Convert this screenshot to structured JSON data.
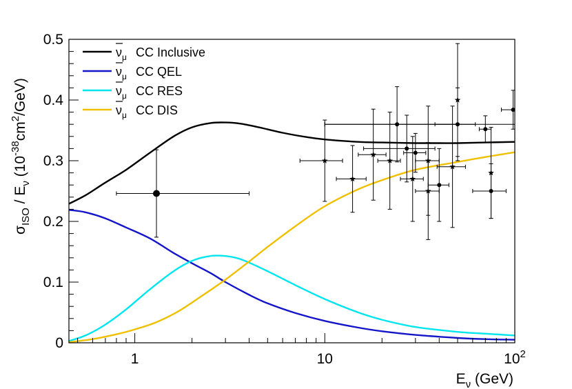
{
  "chart_data": {
    "type": "line",
    "title": "",
    "xlabel": "E_ν (GeV)",
    "ylabel": "σ_ISO / E_ν (10^-38 cm²/GeV)",
    "xscale": "log",
    "xlim": [
      0.45,
      100
    ],
    "ylim": [
      0,
      0.5
    ],
    "legend_position": "top-left",
    "x_ticks": [
      {
        "value": 1,
        "label": "1"
      },
      {
        "value": 10,
        "label": "10"
      },
      {
        "value": 100,
        "label": "10",
        "sup": "2"
      }
    ],
    "y_ticks": [
      {
        "value": 0,
        "label": "0"
      },
      {
        "value": 0.1,
        "label": "0.1"
      },
      {
        "value": 0.2,
        "label": "0.2"
      },
      {
        "value": 0.3,
        "label": "0.3"
      },
      {
        "value": 0.4,
        "label": "0.4"
      },
      {
        "value": 0.5,
        "label": "0.5"
      }
    ],
    "axis_title_parts": {
      "y_sigma": "σ",
      "y_iso": "ISO",
      "y_mid": " / E",
      "y_nu": "ν",
      "y_units_a": " (10",
      "y_exp": "-38",
      "y_units_b": "cm",
      "y_sq": "2",
      "y_units_c": "/GeV)",
      "x_e": "E",
      "x_nu": "ν",
      "x_units": " (GeV)"
    },
    "series": [
      {
        "name": "CC Inclusive",
        "legend_label": "CC Inclusive",
        "color": "#000000",
        "x": [
          0.45,
          0.55,
          0.7,
          0.9,
          1.2,
          1.6,
          2.0,
          2.5,
          3.0,
          3.6,
          4.5,
          6,
          8,
          10,
          15,
          20,
          30,
          40,
          50,
          70,
          100
        ],
        "y": [
          0.229,
          0.243,
          0.264,
          0.285,
          0.313,
          0.34,
          0.355,
          0.362,
          0.363,
          0.361,
          0.355,
          0.346,
          0.339,
          0.335,
          0.331,
          0.33,
          0.329,
          0.329,
          0.329,
          0.33,
          0.331
        ]
      },
      {
        "name": "CC QEL",
        "legend_label": "CC QEL",
        "color": "#1414c8",
        "x": [
          0.45,
          0.55,
          0.7,
          0.9,
          1.2,
          1.6,
          2.0,
          2.5,
          3.0,
          4.0,
          5.0,
          7,
          10,
          15,
          20,
          30,
          50,
          70,
          100
        ],
        "y": [
          0.219,
          0.215,
          0.205,
          0.19,
          0.172,
          0.148,
          0.131,
          0.115,
          0.1,
          0.079,
          0.065,
          0.049,
          0.036,
          0.025,
          0.019,
          0.013,
          0.008,
          0.006,
          0.005
        ]
      },
      {
        "name": "CC RES",
        "legend_label": "CC RES",
        "color": "#00e5ee",
        "x": [
          0.45,
          0.55,
          0.7,
          0.9,
          1.2,
          1.6,
          2.0,
          2.5,
          3.0,
          3.5,
          4.0,
          5,
          7,
          10,
          15,
          20,
          30,
          50,
          70,
          100
        ],
        "y": [
          0.003,
          0.012,
          0.03,
          0.055,
          0.088,
          0.118,
          0.135,
          0.143,
          0.143,
          0.139,
          0.132,
          0.118,
          0.095,
          0.072,
          0.05,
          0.038,
          0.026,
          0.018,
          0.015,
          0.012
        ]
      },
      {
        "name": "CC DIS",
        "legend_label": "CC DIS",
        "color": "#f0c000",
        "x": [
          0.45,
          0.6,
          0.8,
          1.0,
          1.3,
          1.7,
          2.2,
          3.0,
          4.0,
          5,
          7,
          10,
          15,
          20,
          30,
          50,
          70,
          100
        ],
        "y": [
          0.001,
          0.006,
          0.014,
          0.022,
          0.034,
          0.052,
          0.075,
          0.104,
          0.134,
          0.158,
          0.192,
          0.225,
          0.253,
          0.268,
          0.285,
          0.298,
          0.306,
          0.314
        ]
      }
    ],
    "data_points": [
      {
        "x": 1.3,
        "y": 0.246,
        "yerr": [
          0.072,
          0.072
        ],
        "xerr": [
          0.5,
          2.7
        ],
        "marker": "circle"
      },
      {
        "x": 10,
        "y": 0.3,
        "yerr": [
          0.067,
          0.067
        ],
        "xerr": [
          2.6,
          2.4
        ],
        "marker": "star"
      },
      {
        "x": 14,
        "y": 0.27,
        "yerr": [
          0.055,
          0.055
        ],
        "xerr": [
          2.5,
          2.5
        ],
        "marker": "star"
      },
      {
        "x": 18,
        "y": 0.31,
        "yerr": [
          0.075,
          0.075
        ],
        "xerr": [
          3,
          3
        ],
        "marker": "star"
      },
      {
        "x": 22,
        "y": 0.3,
        "yerr": [
          0.08,
          0.08
        ],
        "xerr": [
          3,
          3
        ],
        "marker": "star"
      },
      {
        "x": 24,
        "y": 0.36,
        "yerr": [
          0.062,
          0.062
        ],
        "xerr": [
          14,
          26
        ],
        "marker": "circle"
      },
      {
        "x": 27,
        "y": 0.32,
        "yerr": [
          0.055,
          0.055
        ],
        "xerr": [
          11,
          11
        ],
        "marker": "circle"
      },
      {
        "x": 29,
        "y": 0.27,
        "yerr": [
          0.07,
          0.07
        ],
        "xerr": [
          4,
          4
        ],
        "marker": "star"
      },
      {
        "x": 30,
        "y": 0.313,
        "yerr": [
          0.032,
          0.032
        ],
        "xerr": [
          4,
          4
        ],
        "marker": "circle"
      },
      {
        "x": 35,
        "y": 0.3,
        "yerr": [
          0.09,
          0.09
        ],
        "xerr": [
          5,
          5
        ],
        "marker": "star"
      },
      {
        "x": 35,
        "y": 0.25,
        "yerr": [
          0.08,
          0.08
        ],
        "xerr": [
          5,
          5
        ],
        "marker": "star"
      },
      {
        "x": 40,
        "y": 0.26,
        "yerr": [
          0.06,
          0.06
        ],
        "xerr": [
          5,
          5
        ],
        "marker": "circle"
      },
      {
        "x": 47,
        "y": 0.29,
        "yerr": [
          0.1,
          0.1
        ],
        "xerr": [
          8,
          8
        ],
        "marker": "star"
      },
      {
        "x": 50,
        "y": 0.36,
        "yerr": [
          0.06,
          0.06
        ],
        "xerr": [
          12,
          12
        ],
        "marker": "circle"
      },
      {
        "x": 50,
        "y": 0.4,
        "yerr": [
          0.093,
          0.093
        ],
        "xerr": [
          0,
          0
        ],
        "marker": "star"
      },
      {
        "x": 70,
        "y": 0.352,
        "yerr": [
          0.022,
          0.022
        ],
        "xerr": [
          5,
          5
        ],
        "marker": "circle"
      },
      {
        "x": 75,
        "y": 0.28,
        "yerr": [
          0.075,
          0.075
        ],
        "xerr": [
          0,
          0
        ],
        "marker": "star"
      },
      {
        "x": 75,
        "y": 0.25,
        "yerr": [
          0.045,
          0.045
        ],
        "xerr": [
          15,
          15
        ],
        "marker": "circle"
      },
      {
        "x": 98,
        "y": 0.384,
        "yerr": [
          0.032,
          0.032
        ],
        "xerr": [
          13,
          0
        ],
        "marker": "circle"
      },
      {
        "x": 100,
        "y": 0.36,
        "yerr": [
          0,
          0
        ],
        "xerr": [
          90,
          0
        ],
        "marker": "none"
      }
    ]
  }
}
